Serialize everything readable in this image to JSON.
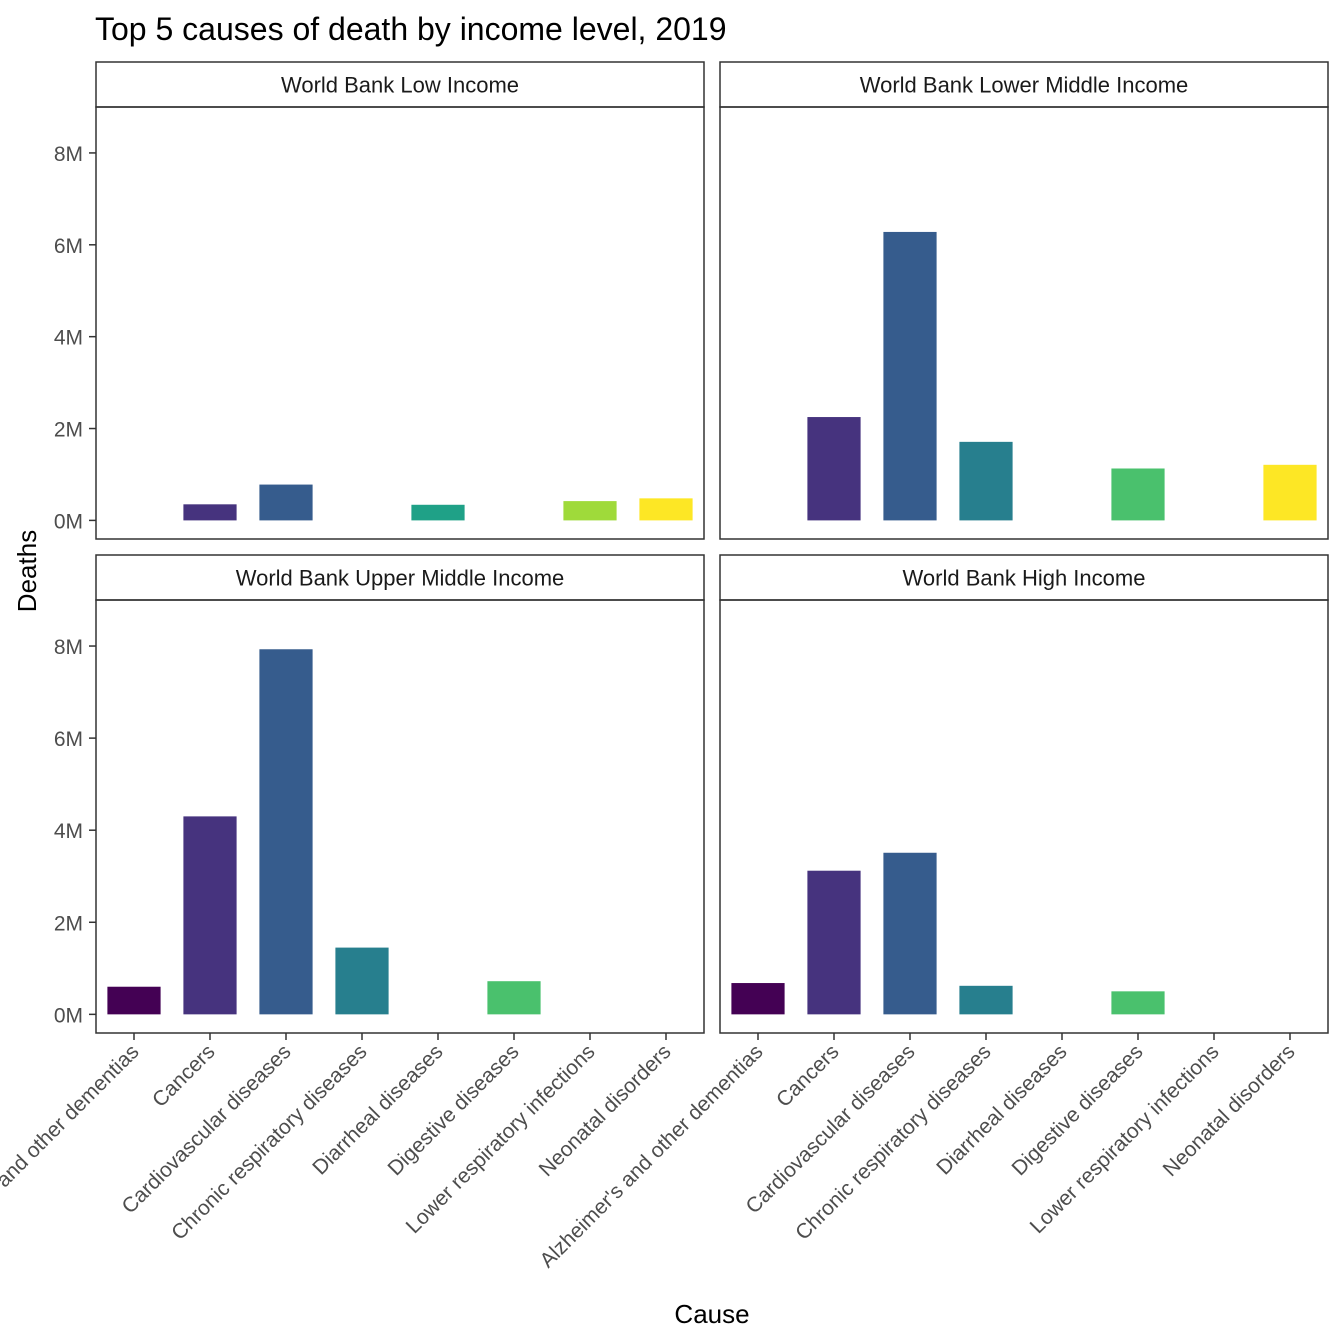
{
  "chart_data": {
    "type": "bar",
    "title": "Top 5 causes of death by income level, 2019",
    "xlabel": "Cause",
    "ylabel": "Deaths",
    "ylim": [
      0,
      9000000
    ],
    "yticks": [
      0,
      2000000,
      4000000,
      6000000,
      8000000
    ],
    "ytick_labels": [
      "0M",
      "2M",
      "4M",
      "6M",
      "8M"
    ],
    "categories": [
      "Alzheimer's and other dementias",
      "Cancers",
      "Cardiovascular diseases",
      "Chronic respiratory diseases",
      "Diarrheal diseases",
      "Digestive diseases",
      "Lower respiratory infections",
      "Neonatal disorders"
    ],
    "category_colors": [
      "#440154",
      "#46337E",
      "#365C8D",
      "#277F8E",
      "#1FA187",
      "#4AC16D",
      "#9FDA3A",
      "#FDE725"
    ],
    "grid": false,
    "legend": "none",
    "panels": [
      {
        "name": "World Bank Low Income",
        "values": [
          null,
          350000,
          780000,
          null,
          340000,
          null,
          420000,
          480000
        ]
      },
      {
        "name": "World Bank Lower Middle Income",
        "values": [
          null,
          2250000,
          6280000,
          1710000,
          null,
          1130000,
          null,
          1210000
        ]
      },
      {
        "name": "World Bank Upper Middle Income",
        "values": [
          600000,
          4300000,
          7930000,
          1450000,
          null,
          720000,
          null,
          null
        ]
      },
      {
        "name": "World Bank High Income",
        "values": [
          680000,
          3120000,
          3510000,
          620000,
          null,
          500000,
          null,
          null
        ]
      }
    ]
  }
}
